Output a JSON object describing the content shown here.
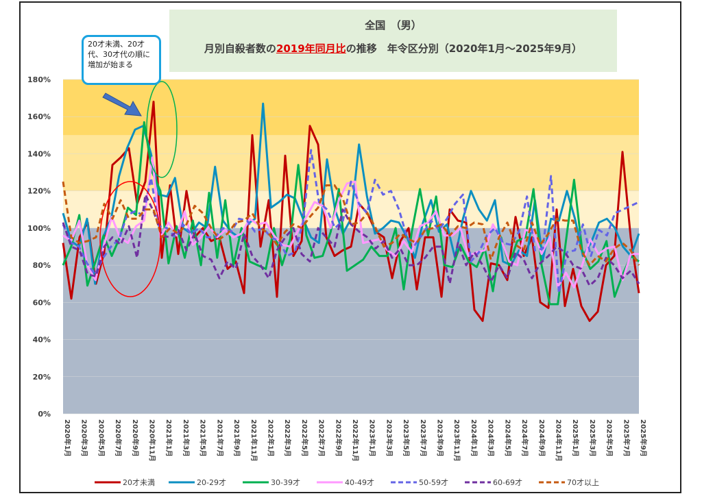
{
  "title": {
    "line1": "全国　（男）",
    "line2_pre": "月別自殺者数の",
    "line2_highlight": "2019年同月比",
    "line2_post": "の推移　年令区分別（2020年1月～2025年9月）"
  },
  "annotation": {
    "text": "20才未満、20才代、30才代の順に増加が始まる"
  },
  "chart_data": {
    "type": "line",
    "ylim": [
      0,
      180
    ],
    "yticks": [
      "0%",
      "20%",
      "40%",
      "60%",
      "80%",
      "100%",
      "120%",
      "140%",
      "160%",
      "180%"
    ],
    "bands": [
      {
        "from": 0,
        "to": 100,
        "color": "#adb9ca"
      },
      {
        "from": 100,
        "to": 120,
        "color": "#fff2cc"
      },
      {
        "from": 120,
        "to": 150,
        "color": "#ffe699"
      },
      {
        "from": 150,
        "to": 180,
        "color": "#ffd966"
      }
    ],
    "xticks": [
      "2020年1月",
      "2020年3月",
      "2020年5月",
      "2020年7月",
      "2020年9月",
      "2020年11月",
      "2021年1月",
      "2021年3月",
      "2021年5月",
      "2021年7月",
      "2021年9月",
      "2021年11月",
      "2022年1月",
      "2022年3月",
      "2022年5月",
      "2022年7月",
      "2022年9月",
      "2022年11月",
      "2023年1月",
      "2023年3月",
      "2023年5月",
      "2023年7月",
      "2023年9月",
      "2023年11月",
      "2024年1月",
      "2024年3月",
      "2024年5月",
      "2024年7月",
      "2024年9月",
      "2024年11月",
      "2025年1月",
      "2025年3月",
      "2025年5月",
      "2025年7月",
      "2025年9月"
    ],
    "series": [
      {
        "name": "20才未満",
        "color": "#c00000",
        "dash": "solid",
        "width": 3,
        "values": [
          92,
          62,
          95,
          103,
          70,
          87,
          134,
          138,
          143,
          113,
          125,
          168,
          84,
          123,
          86,
          120,
          95,
          100,
          93,
          95,
          78,
          82,
          65,
          150,
          90,
          115,
          63,
          139,
          85,
          93,
          155,
          145,
          95,
          85,
          88,
          90,
          113,
          108,
          98,
          95,
          73,
          93,
          100,
          67,
          95,
          95,
          63,
          110,
          104,
          103,
          56,
          50,
          81,
          80,
          72,
          106,
          85,
          95,
          60,
          57,
          110,
          58,
          78,
          58,
          50,
          55,
          80,
          85,
          141,
          95,
          65
        ]
      },
      {
        "name": "20-29才",
        "color": "#0c8fc1",
        "dash": "solid",
        "width": 3,
        "values": [
          108,
          93,
          90,
          105,
          70,
          95,
          105,
          128,
          143,
          153,
          155,
          140,
          118,
          117,
          127,
          100,
          97,
          103,
          100,
          133,
          104,
          98,
          95,
          102,
          105,
          167,
          111,
          114,
          118,
          116,
          105,
          95,
          92,
          137,
          110,
          97,
          105,
          145,
          117,
          97,
          100,
          104,
          103,
          95,
          84,
          103,
          115,
          98,
          102,
          84,
          105,
          120,
          110,
          104,
          115,
          82,
          80,
          88,
          85,
          115,
          83,
          105,
          104,
          120,
          105,
          85,
          92,
          103,
          105,
          100,
          90,
          85,
          97
        ]
      },
      {
        "name": "30-39才",
        "color": "#00b050",
        "dash": "solid",
        "width": 3,
        "values": [
          80,
          90,
          107,
          69,
          82,
          96,
          85,
          95,
          111,
          107,
          157,
          130,
          120,
          81,
          101,
          84,
          104,
          80,
          119,
          84,
          115,
          80,
          100,
          82,
          80,
          78,
          100,
          80,
          94,
          134,
          96,
          84,
          85,
          98,
          121,
          77,
          80,
          83,
          90,
          85,
          85,
          100,
          67,
          98,
          121,
          96,
          117,
          80,
          79,
          91,
          82,
          79,
          89,
          66,
          95,
          80,
          93,
          95,
          121,
          80,
          59,
          59,
          93,
          126,
          88,
          78,
          82,
          93,
          63,
          75,
          85,
          82
        ]
      },
      {
        "name": "40-49才",
        "color": "#ff99ff",
        "dash": "solid",
        "width": 3,
        "values": [
          96,
          93,
          104,
          80,
          72,
          90,
          106,
          95,
          92,
          101,
          104,
          138,
          95,
          103,
          96,
          109,
          91,
          95,
          101,
          95,
          99,
          95,
          97,
          105,
          102,
          103,
          96,
          91,
          90,
          99,
          106,
          114,
          112,
          100,
          115,
          124,
          125,
          92,
          93,
          94,
          88,
          85,
          93,
          87,
          101,
          103,
          109,
          96,
          96,
          100,
          85,
          87,
          88,
          102,
          94,
          82,
          80,
          99,
          98,
          86,
          95,
          68,
          76,
          68,
          80,
          94,
          86,
          89,
          90,
          72,
          86,
          86
        ]
      },
      {
        "name": "50-59才",
        "color": "#6464e6",
        "dash": "dashed",
        "width": 3,
        "values": [
          102,
          92,
          90,
          81,
          75,
          84,
          90,
          94,
          107,
          109,
          107,
          127,
          101,
          100,
          95,
          102,
          97,
          100,
          95,
          95,
          100,
          98,
          105,
          104,
          98,
          100,
          95,
          93,
          85,
          87,
          103,
          142,
          114,
          110,
          100,
          104,
          125,
          113,
          108,
          126,
          118,
          120,
          110,
          95,
          91,
          97,
          104,
          99,
          105,
          113,
          118,
          82,
          87,
          96,
          100,
          92,
          91,
          98,
          117,
          88,
          89,
          128,
          65,
          87,
          88,
          102,
          85,
          99,
          96,
          108,
          110,
          112,
          114
        ]
      },
      {
        "name": "60-69才",
        "color": "#7030a0",
        "dash": "dashed",
        "width": 3,
        "values": [
          103,
          90,
          88,
          75,
          74,
          90,
          95,
          91,
          101,
          84,
          118,
          109,
          96,
          95,
          99,
          88,
          97,
          85,
          83,
          73,
          82,
          78,
          97,
          85,
          80,
          73,
          88,
          95,
          100,
          86,
          82,
          100,
          95,
          90,
          110,
          102,
          98,
          95,
          89,
          93,
          84,
          89,
          80,
          80,
          84,
          90,
          90,
          70,
          92,
          80,
          87,
          80,
          71,
          80,
          73,
          87,
          83,
          73,
          81,
          85,
          90,
          87,
          80,
          78,
          69,
          73,
          84,
          80,
          73,
          77,
          70
        ]
      },
      {
        "name": "70才以上",
        "color": "#c55a11",
        "dash": "dashed",
        "width": 3,
        "values": [
          125,
          95,
          92,
          93,
          95,
          113,
          105,
          115,
          105,
          105,
          110,
          110,
          95,
          100,
          97,
          102,
          112,
          108,
          100,
          94,
          97,
          103,
          104,
          108,
          100,
          97,
          91,
          98,
          102,
          100,
          106,
          111,
          123,
          123,
          116,
          102,
          103,
          108,
          100,
          90,
          92,
          97,
          94,
          92,
          99,
          100,
          102,
          96,
          101,
          100,
          103,
          102,
          83,
          95,
          103,
          91,
          88,
          103,
          91,
          97,
          105,
          104,
          104,
          88,
          80,
          85,
          82,
          89,
          92,
          88,
          80
        ]
      }
    ],
    "legend_position": "bottom"
  }
}
